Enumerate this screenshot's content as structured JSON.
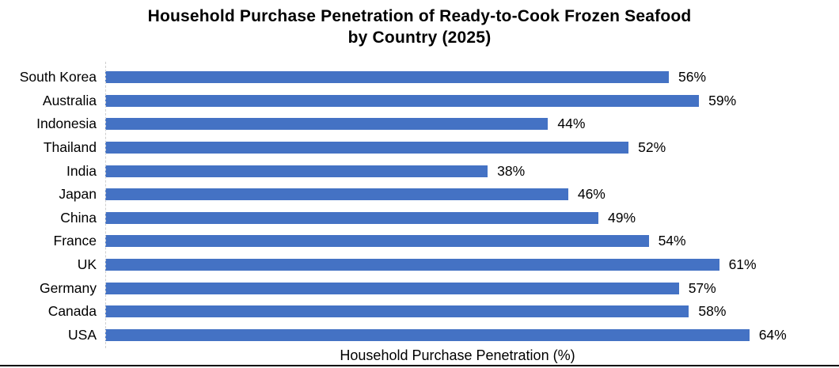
{
  "chart_data": {
    "type": "bar",
    "orientation": "horizontal",
    "title": "Household Purchase Penetration of Ready-to-Cook Frozen Seafood by Country (2025)",
    "title_lines": [
      "Household Purchase Penetration of Ready-to-Cook Frozen Seafood",
      "by Country (2025)"
    ],
    "categories": [
      "South Korea",
      "Australia",
      "Indonesia",
      "Thailand",
      "India",
      "Japan",
      "China",
      "France",
      "UK",
      "Germany",
      "Canada",
      "USA"
    ],
    "values": [
      56,
      59,
      44,
      52,
      38,
      46,
      49,
      54,
      61,
      57,
      58,
      64
    ],
    "value_labels": [
      "56%",
      "59%",
      "44%",
      "52%",
      "38%",
      "46%",
      "49%",
      "54%",
      "61%",
      "57%",
      "58%",
      "64%"
    ],
    "xlabel": "Household Purchase Penetration (%)",
    "ylabel": "",
    "xlim": [
      0,
      70
    ],
    "grid": false,
    "legend": null,
    "data_labels": true,
    "colors": {
      "bar": "#4472C4",
      "text": "#000000",
      "axis_line": "#cfcfcf",
      "bottom_rule": "#000000",
      "background": "#ffffff"
    }
  }
}
